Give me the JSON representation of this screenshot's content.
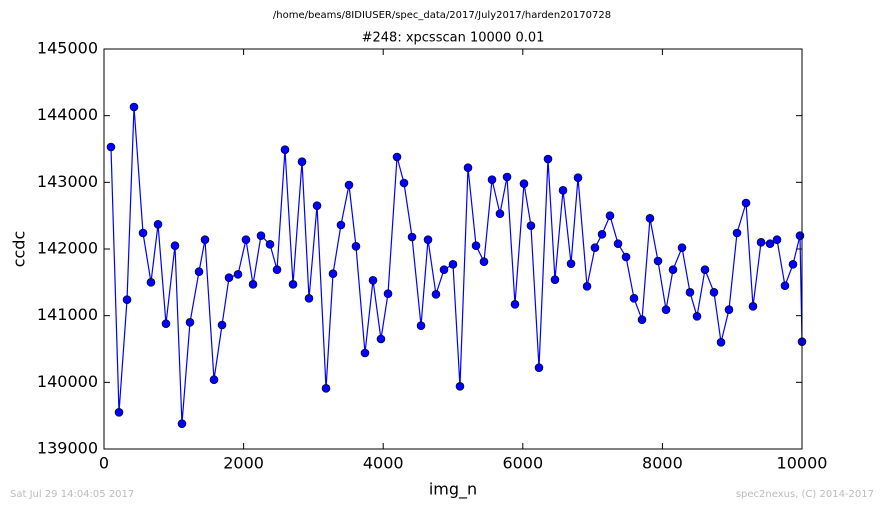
{
  "chart_data": {
    "type": "line",
    "suptitle": "/home/beams/8IDIUSER/spec_data/2017/July2017/harden20170728",
    "title": "#248: xpcsscan 10000 0.01",
    "x_label": "img_n",
    "y_label": "ccdc",
    "footer_left": "Sat Jul 29 14:04:05 2017",
    "footer_right": "spec2nexus, (C) 2014-2017",
    "x": [
      100,
      215,
      330,
      430,
      559,
      673,
      774,
      888,
      1017,
      1117,
      1232,
      1361,
      1447,
      1576,
      1691,
      1791,
      1920,
      2034,
      2135,
      2249,
      2378,
      2479,
      2593,
      2708,
      2837,
      2937,
      3052,
      3181,
      3281,
      3395,
      3510,
      3610,
      3739,
      3854,
      3968,
      4069,
      4198,
      4298,
      4413,
      4542,
      4642,
      4756,
      4871,
      5000,
      5100,
      5215,
      5330,
      5444,
      5559,
      5673,
      5774,
      5888,
      6017,
      6117,
      6232,
      6361,
      6461,
      6576,
      6691,
      6791,
      6920,
      7034,
      7135,
      7249,
      7364,
      7479,
      7593,
      7708,
      7822,
      7937,
      8052,
      8152,
      8281,
      8395,
      8496,
      8610,
      8739,
      8840,
      8954,
      9069,
      9198,
      9298,
      9413,
      9542,
      9642,
      9756,
      9871,
      9971,
      10000
    ],
    "series": [
      {
        "name": "ccdc",
        "color": "#0000ff",
        "marker": "circle",
        "values": [
          143530,
          139550,
          141240,
          144130,
          142240,
          141500,
          142370,
          140880,
          142050,
          139380,
          140900,
          141660,
          142140,
          140040,
          140860,
          141570,
          141620,
          142140,
          141470,
          142200,
          142070,
          141690,
          143490,
          141470,
          143310,
          141260,
          142650,
          139910,
          141630,
          142360,
          142960,
          142040,
          140440,
          141530,
          140650,
          141330,
          143380,
          142990,
          142180,
          140850,
          142140,
          141320,
          141690,
          141770,
          139940,
          143220,
          142050,
          141810,
          143040,
          142530,
          143080,
          141170,
          142980,
          142350,
          140220,
          143350,
          141540,
          142880,
          141780,
          143070,
          141440,
          142020,
          142220,
          142500,
          142080,
          141880,
          141260,
          140940,
          142460,
          141820,
          141090,
          141690,
          142020,
          141350,
          140990,
          141690,
          141350,
          140600,
          141090,
          142240,
          142690,
          141140,
          142100,
          142080,
          142140,
          141450,
          141770,
          142200,
          140610
        ]
      }
    ],
    "xlim": [
      0,
      10000
    ],
    "xticks": [
      0,
      2000,
      4000,
      6000,
      8000,
      10000
    ],
    "ylim": [
      139000,
      145000
    ],
    "yticks": [
      139000,
      140000,
      141000,
      142000,
      143000,
      144000,
      145000
    ],
    "grid": false
  }
}
